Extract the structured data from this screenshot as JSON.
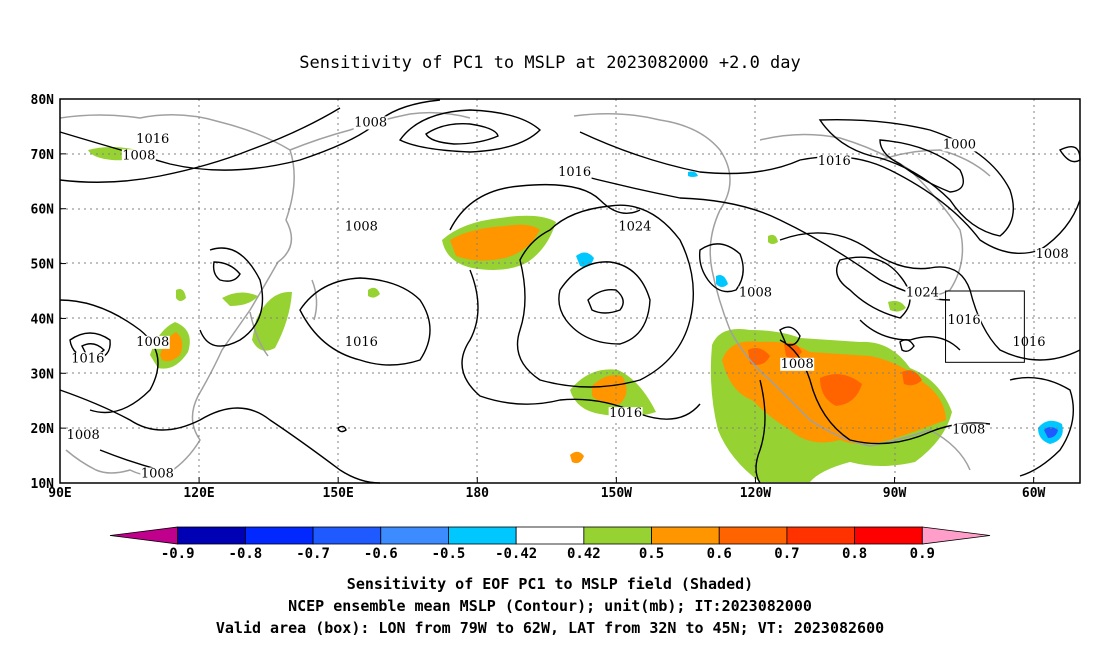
{
  "title": "Sensitivity of PC1 to MSLP at 2023082000 +2.0 day",
  "map": {
    "lon_range": [
      90,
      310
    ],
    "lat_range": [
      10,
      80
    ],
    "lon_ticks": [
      {
        "lon": 90,
        "label": "90E"
      },
      {
        "lon": 120,
        "label": "120E"
      },
      {
        "lon": 150,
        "label": "150E"
      },
      {
        "lon": 180,
        "label": "180"
      },
      {
        "lon": 210,
        "label": "150W"
      },
      {
        "lon": 240,
        "label": "120W"
      },
      {
        "lon": 270,
        "label": "90W"
      },
      {
        "lon": 300,
        "label": "60W"
      }
    ],
    "lat_ticks": [
      {
        "lat": 10,
        "label": "10N"
      },
      {
        "lat": 20,
        "label": "20N"
      },
      {
        "lat": 30,
        "label": "30N"
      },
      {
        "lat": 40,
        "label": "40N"
      },
      {
        "lat": 50,
        "label": "50N"
      },
      {
        "lat": 60,
        "label": "60N"
      },
      {
        "lat": 70,
        "label": "70N"
      },
      {
        "lat": 80,
        "label": "80N"
      }
    ],
    "grid": "dotted",
    "valid_box": {
      "lon_w": 281,
      "lon_e": 298,
      "lat_s": 32,
      "lat_n": 45
    },
    "contour_labels": [
      {
        "text": "1008",
        "lon": 157,
        "lat": 75
      },
      {
        "text": "1016",
        "lon": 110,
        "lat": 72
      },
      {
        "text": "1008",
        "lon": 107,
        "lat": 69
      },
      {
        "text": "1016",
        "lon": 201,
        "lat": 66
      },
      {
        "text": "1016",
        "lon": 257,
        "lat": 68
      },
      {
        "text": "1000",
        "lon": 284,
        "lat": 71
      },
      {
        "text": "1008",
        "lon": 155,
        "lat": 56
      },
      {
        "text": "1024",
        "lon": 214,
        "lat": 56
      },
      {
        "text": "1008",
        "lon": 304,
        "lat": 51
      },
      {
        "text": "1008",
        "lon": 240,
        "lat": 44
      },
      {
        "text": "1024",
        "lon": 276,
        "lat": 44
      },
      {
        "text": "1016",
        "lon": 285,
        "lat": 39
      },
      {
        "text": "1016",
        "lon": 155,
        "lat": 35
      },
      {
        "text": "1016",
        "lon": 96,
        "lat": 32
      },
      {
        "text": "1008",
        "lon": 110,
        "lat": 35
      },
      {
        "text": "1008",
        "lon": 249,
        "lat": 31
      },
      {
        "text": "1016",
        "lon": 299,
        "lat": 35
      },
      {
        "text": "1016",
        "lon": 212,
        "lat": 22
      },
      {
        "text": "1008",
        "lon": 95,
        "lat": 18
      },
      {
        "text": "1008",
        "lon": 286,
        "lat": 19
      },
      {
        "text": "1008",
        "lon": 111,
        "lat": 11
      }
    ]
  },
  "colorbar": {
    "labels": [
      "-0.9",
      "-0.8",
      "-0.7",
      "-0.6",
      "-0.5",
      "-0.42",
      "0.42",
      "0.5",
      "0.6",
      "0.7",
      "0.8",
      "0.9"
    ],
    "colors": [
      "#c0008c",
      "#0000b4",
      "#0028ff",
      "#1e5aff",
      "#3c8cff",
      "#00c8ff",
      "#ffffff",
      "#96d232",
      "#ff9600",
      "#ff6400",
      "#ff3200",
      "#ff0000",
      "#ff9ec8"
    ]
  },
  "caption": {
    "line1": "Sensitivity of EOF PC1 to MSLP field (Shaded)",
    "line2": "NCEP ensemble mean MSLP (Contour); unit(mb); IT:2023082000",
    "line3": "Valid area (box): LON from 79W to 62W, LAT from 32N to 45N; VT: 2023082600"
  }
}
